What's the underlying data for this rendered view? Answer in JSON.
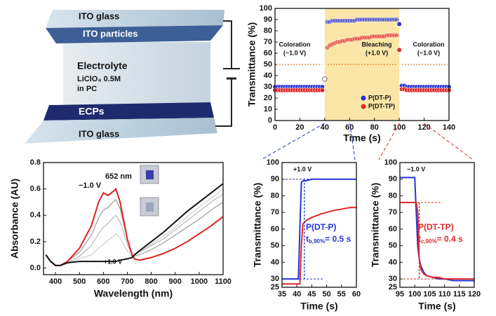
{
  "diagram": {
    "labels": [
      "ITO glass",
      "ITO particles",
      "Electrolyte",
      "LiClO₄ 0.5M",
      "in PC",
      "ECPs",
      "ITO glass"
    ]
  },
  "chart_data": [
    {
      "type": "scatter",
      "x_label": "Time (s)",
      "y_label": "Transmittance (%)",
      "xlim": [
        0,
        140
      ],
      "xticks": [
        0,
        20,
        40,
        60,
        80,
        100,
        120,
        140
      ],
      "ylim": [
        0,
        100
      ],
      "yticks": [
        0,
        10,
        20,
        30,
        40,
        50,
        60,
        70,
        80,
        90,
        100
      ],
      "shade": [
        40,
        100
      ],
      "shade_color": "#fbe6a8",
      "annotations": [
        "Coloration",
        "(−1.0 V)",
        "Bleaching",
        "(+1.0 V)",
        "Coloration",
        "(−1.0 V)"
      ],
      "legend": "lower center",
      "x": [
        0,
        2,
        4,
        6,
        8,
        10,
        12,
        14,
        16,
        18,
        20,
        22,
        24,
        26,
        28,
        30,
        32,
        34,
        36,
        38,
        40,
        42,
        44,
        46,
        48,
        50,
        52,
        54,
        56,
        58,
        60,
        62,
        64,
        66,
        68,
        70,
        72,
        74,
        76,
        78,
        80,
        82,
        84,
        86,
        88,
        90,
        92,
        94,
        96,
        98,
        100,
        102,
        104,
        106,
        108,
        110,
        112,
        114,
        116,
        118,
        120,
        122,
        124,
        126,
        128,
        130,
        132,
        134,
        136,
        138,
        140
      ],
      "series": [
        {
          "name": "P(DT-P)",
          "color": "#2433d6",
          "values": [
            30,
            30,
            30,
            30,
            30,
            30,
            30,
            30,
            30,
            30,
            30,
            30,
            30,
            30,
            30,
            30,
            30,
            30,
            30,
            30,
            37,
            88,
            88,
            89,
            89,
            89,
            89,
            89,
            89,
            89,
            89,
            89,
            89,
            90,
            90,
            90,
            90,
            90,
            90,
            90,
            90,
            90,
            90,
            90,
            90,
            90,
            90,
            90,
            90,
            90,
            86,
            31,
            31,
            30,
            30,
            30,
            30,
            30,
            30,
            30,
            30,
            30,
            30,
            30,
            30,
            30,
            30,
            30,
            30,
            30,
            30
          ]
        },
        {
          "name": "P(DT-TP)",
          "color": "#e02828",
          "values": [
            27,
            27,
            27,
            27,
            27,
            27,
            27,
            27,
            27,
            27,
            27,
            27,
            27,
            27,
            27,
            27,
            27,
            27,
            27,
            27,
            37,
            65,
            67,
            68,
            69,
            70,
            70,
            71,
            71,
            72,
            72,
            72,
            73,
            73,
            73,
            74,
            74,
            74,
            74,
            75,
            75,
            75,
            75,
            75,
            75,
            76,
            76,
            76,
            76,
            76,
            63,
            28,
            28,
            27,
            27,
            27,
            27,
            27,
            27,
            27,
            27,
            27,
            27,
            27,
            27,
            27,
            27,
            27,
            27,
            27,
            27
          ]
        }
      ]
    },
    {
      "type": "line",
      "x_label": "Wavelength (nm)",
      "y_label": "Absorbance (AU)",
      "xlim": [
        350,
        1100
      ],
      "xticks": [
        400,
        500,
        600,
        700,
        800,
        900,
        1000,
        1100
      ],
      "ylim": [
        -0.05,
        0.8
      ],
      "yticks": [
        {
          "value": 0,
          "label": "0.0"
        },
        0.2,
        0.4,
        0.6,
        0.8
      ],
      "annotations": [
        "652 nm",
        "−1.0 V",
        "+1.0 V"
      ],
      "x": [
        360,
        380,
        400,
        420,
        450,
        500,
        550,
        580,
        600,
        620,
        640,
        652,
        670,
        700,
        720,
        730,
        750,
        800,
        850,
        900,
        950,
        1000,
        1050,
        1100
      ],
      "series": [
        {
          "color": "#d4d4d4",
          "values": [
            0.1,
            0.05,
            0.02,
            0.02,
            0.04,
            0.07,
            0.1,
            0.15,
            0.18,
            0.21,
            0.24,
            0.26,
            0.23,
            0.13,
            0.09,
            0.1,
            0.12,
            0.18,
            0.24,
            0.31,
            0.39,
            0.46,
            0.53,
            0.6
          ]
        },
        {
          "color": "#c0c0c0",
          "values": [
            0.1,
            0.05,
            0.02,
            0.02,
            0.04,
            0.09,
            0.17,
            0.26,
            0.31,
            0.34,
            0.38,
            0.4,
            0.35,
            0.18,
            0.1,
            0.1,
            0.12,
            0.17,
            0.22,
            0.29,
            0.36,
            0.43,
            0.5,
            0.56
          ]
        },
        {
          "color": "#a8a8a8",
          "values": [
            0.1,
            0.05,
            0.02,
            0.02,
            0.05,
            0.12,
            0.25,
            0.38,
            0.44,
            0.46,
            0.5,
            0.52,
            0.45,
            0.22,
            0.1,
            0.09,
            0.1,
            0.14,
            0.19,
            0.25,
            0.31,
            0.37,
            0.44,
            0.5
          ]
        },
        {
          "color": "#e02020",
          "values": [
            0.1,
            0.05,
            0.02,
            0.02,
            0.05,
            0.15,
            0.32,
            0.5,
            0.57,
            0.55,
            0.58,
            0.6,
            0.5,
            0.22,
            0.1,
            0.07,
            0.06,
            0.08,
            0.11,
            0.15,
            0.2,
            0.26,
            0.32,
            0.39
          ]
        },
        {
          "color": "#111111",
          "values": [
            0.1,
            0.05,
            0.02,
            0.02,
            0.04,
            0.05,
            0.05,
            0.05,
            0.05,
            0.05,
            0.05,
            0.05,
            0.06,
            0.07,
            0.08,
            0.1,
            0.13,
            0.2,
            0.27,
            0.35,
            0.43,
            0.5,
            0.57,
            0.64
          ]
        }
      ]
    },
    {
      "type": "line",
      "x_label": "Time (s)",
      "y_label": "Transmittance (%)",
      "xlim": [
        35,
        60
      ],
      "xticks": [
        35,
        40,
        45,
        50,
        55,
        60
      ],
      "ylim": [
        25,
        100
      ],
      "yticks": [
        25,
        30,
        40,
        50,
        60,
        70,
        80,
        90,
        100
      ],
      "annotations": [
        "+1.0 V",
        "P(DT-P)",
        "t",
        "b,90%",
        "= 0.5 s"
      ],
      "x": [
        35,
        36,
        37,
        38,
        39,
        40,
        40.5,
        41,
        41.5,
        42,
        43,
        45,
        48,
        50,
        52,
        55,
        58,
        60
      ],
      "series": [
        {
          "color": "#2433d6",
          "values": [
            30,
            30,
            30,
            30,
            30,
            30,
            30,
            60,
            88,
            89,
            89,
            90,
            90,
            90,
            90,
            90,
            90,
            90
          ]
        },
        {
          "color": "#e02828",
          "values": [
            27,
            27,
            27,
            27,
            27,
            27,
            27,
            27,
            50,
            63,
            65,
            67,
            69,
            70,
            71,
            72,
            73,
            73
          ]
        }
      ]
    },
    {
      "type": "line",
      "x_label": "Time (s)",
      "y_label": "Transmittance (%)",
      "xlim": [
        95,
        120
      ],
      "xticks": [
        95,
        100,
        105,
        110,
        115,
        120
      ],
      "ylim": [
        25,
        100
      ],
      "yticks": [
        25,
        30,
        40,
        50,
        60,
        70,
        80,
        90,
        100
      ],
      "annotations": [
        "−1.0 V",
        "P(DT-TP)",
        "t",
        "c,90%",
        "= 0.4 s"
      ],
      "x": [
        95,
        96,
        97,
        98,
        99,
        100,
        100.5,
        101,
        101.5,
        102,
        103,
        104,
        106,
        108,
        110,
        113,
        116,
        120
      ],
      "series": [
        {
          "color": "#2433d6",
          "values": [
            91,
            91,
            91,
            91,
            91,
            91,
            70,
            50,
            42,
            38,
            34,
            32,
            31,
            30,
            30,
            29,
            29,
            29
          ]
        },
        {
          "color": "#e02828",
          "values": [
            76,
            76,
            76,
            76,
            76,
            76,
            76,
            70,
            42,
            36,
            33,
            32,
            31,
            31,
            30,
            30,
            30,
            30
          ]
        }
      ]
    }
  ]
}
